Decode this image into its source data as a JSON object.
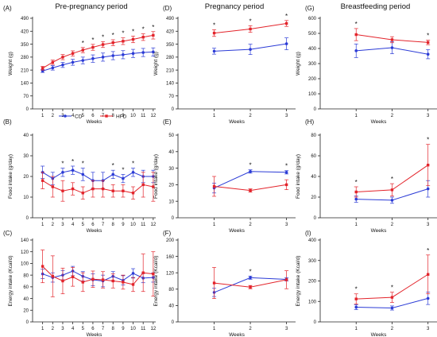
{
  "column_titles": [
    "Pre-pregnancy period",
    "Pregnancy period",
    "Breastfeeding period"
  ],
  "legend": {
    "cd_label": "CD",
    "hfd_label": "HFD"
  },
  "colors": {
    "CD": "#2b3bd6",
    "HFD": "#e3242b",
    "axis": "#222222"
  },
  "chart_data": [
    {
      "id": "A",
      "panel_label": "(A)",
      "type": "line",
      "ylabel": "Weight (g)",
      "xlabel": "Weeks",
      "x": [
        1,
        2,
        3,
        4,
        5,
        6,
        7,
        8,
        9,
        10,
        11,
        12
      ],
      "ylim": [
        0,
        490
      ],
      "yticks": [
        0,
        70,
        140,
        210,
        280,
        350,
        420,
        490
      ],
      "series": [
        {
          "name": "CD",
          "values": [
            205,
            222,
            238,
            252,
            262,
            272,
            280,
            288,
            293,
            300,
            305,
            308
          ],
          "errors": [
            8,
            12,
            14,
            16,
            18,
            20,
            22,
            22,
            22,
            22,
            22,
            22
          ]
        },
        {
          "name": "HFD",
          "values": [
            220,
            252,
            280,
            300,
            318,
            333,
            348,
            358,
            366,
            376,
            388,
            398
          ],
          "errors": [
            10,
            12,
            14,
            14,
            14,
            16,
            16,
            16,
            18,
            18,
            18,
            20
          ]
        }
      ],
      "significance": [
        "",
        "",
        "",
        "",
        "*",
        "*",
        "*",
        "*",
        "*",
        "*",
        "*",
        "*"
      ]
    },
    {
      "id": "B",
      "panel_label": "(B)",
      "type": "line",
      "ylabel": "Food intake (g/day)",
      "xlabel": "Weeks",
      "x": [
        1,
        2,
        3,
        4,
        5,
        6,
        7,
        8,
        9,
        10,
        11,
        12
      ],
      "ylim": [
        0,
        40
      ],
      "yticks": [
        0,
        10,
        20,
        30,
        40
      ],
      "series": [
        {
          "name": "CD",
          "values": [
            22,
            19,
            22,
            23,
            21,
            18,
            18,
            21,
            19,
            22,
            20,
            20
          ],
          "errors": [
            3,
            3,
            2,
            2,
            3,
            4,
            4,
            2,
            2,
            2,
            3,
            3
          ]
        },
        {
          "name": "HFD",
          "values": [
            18,
            15,
            13,
            14,
            12,
            14,
            14,
            13,
            13,
            12,
            16,
            15
          ],
          "errors": [
            4,
            5,
            5,
            3,
            3,
            4,
            4,
            3,
            3,
            3,
            6,
            7
          ]
        }
      ],
      "significance": [
        "",
        "",
        "*",
        "*",
        "*",
        "",
        "",
        "*",
        "*",
        "*",
        "",
        ""
      ]
    },
    {
      "id": "C",
      "panel_label": "(C)",
      "type": "line",
      "ylabel": "Energy intake (Kcal/d)",
      "xlabel": "Weeks",
      "x": [
        1,
        2,
        3,
        4,
        5,
        6,
        7,
        8,
        9,
        10,
        11,
        12
      ],
      "ylim": [
        0,
        140
      ],
      "yticks": [
        0,
        20,
        40,
        60,
        80,
        100,
        120,
        140
      ],
      "series": [
        {
          "name": "CD",
          "values": [
            82,
            76,
            80,
            87,
            78,
            72,
            70,
            78,
            71,
            83,
            75,
            76
          ],
          "errors": [
            8,
            8,
            8,
            8,
            8,
            10,
            10,
            8,
            8,
            8,
            8,
            8
          ]
        },
        {
          "name": "HFD",
          "values": [
            95,
            78,
            70,
            77,
            68,
            73,
            72,
            70,
            68,
            64,
            84,
            82
          ],
          "errors": [
            28,
            35,
            22,
            16,
            16,
            14,
            14,
            12,
            12,
            12,
            32,
            38
          ]
        }
      ],
      "significance": [
        "",
        "",
        "",
        "",
        "",
        "",
        "",
        "",
        "",
        "",
        "",
        ""
      ]
    },
    {
      "id": "D",
      "panel_label": "(D)",
      "type": "line",
      "ylabel": "Weight (g)",
      "xlabel": "Weeks",
      "x": [
        1,
        2,
        3
      ],
      "ylim": [
        0,
        490
      ],
      "yticks": [
        0,
        70,
        140,
        210,
        280,
        350,
        420,
        490
      ],
      "series": [
        {
          "name": "CD",
          "values": [
            312,
            322,
            352
          ],
          "errors": [
            16,
            28,
            32
          ]
        },
        {
          "name": "HFD",
          "values": [
            410,
            432,
            462
          ],
          "errors": [
            18,
            18,
            16
          ]
        }
      ],
      "significance": [
        "*",
        "*",
        "*"
      ]
    },
    {
      "id": "E",
      "panel_label": "(E)",
      "type": "line",
      "ylabel": "Food intake (g/day)",
      "xlabel": "Weeks",
      "x": [
        1,
        2,
        3
      ],
      "ylim": [
        0,
        50
      ],
      "yticks": [
        0,
        10,
        20,
        30,
        40,
        50
      ],
      "series": [
        {
          "name": "CD",
          "values": [
            18,
            28,
            27.5
          ],
          "errors": [
            3,
            1,
            1
          ]
        },
        {
          "name": "HFD",
          "values": [
            19,
            16.5,
            20
          ],
          "errors": [
            6,
            1,
            3
          ]
        }
      ],
      "significance": [
        "",
        "*",
        "*"
      ]
    },
    {
      "id": "F",
      "panel_label": "(F)",
      "type": "line",
      "ylabel": "Energy intake (Kcal/d)",
      "xlabel": "Weeks",
      "x": [
        1,
        2,
        3
      ],
      "ylim": [
        0,
        200
      ],
      "yticks": [
        0,
        40,
        80,
        120,
        160,
        200
      ],
      "series": [
        {
          "name": "CD",
          "values": [
            72,
            108,
            104
          ],
          "errors": [
            10,
            4,
            4
          ]
        },
        {
          "name": "HFD",
          "values": [
            95,
            85,
            103
          ],
          "errors": [
            38,
            4,
            22
          ]
        }
      ],
      "significance": [
        "",
        "*",
        ""
      ]
    },
    {
      "id": "G",
      "panel_label": "(G)",
      "type": "line",
      "ylabel": "Weight (g)",
      "xlabel": "Weeks",
      "x": [
        1,
        2,
        3
      ],
      "ylim": [
        0,
        600
      ],
      "yticks": [
        0,
        100,
        200,
        300,
        400,
        500,
        600
      ],
      "series": [
        {
          "name": "CD",
          "values": [
            385,
            405,
            362
          ],
          "errors": [
            45,
            40,
            30
          ]
        },
        {
          "name": "HFD",
          "values": [
            492,
            458,
            440
          ],
          "errors": [
            40,
            20,
            15
          ]
        }
      ],
      "significance": [
        "*",
        "",
        "*"
      ]
    },
    {
      "id": "H",
      "panel_label": "(H)",
      "type": "line",
      "ylabel": "Food intake (g/day)",
      "xlabel": "Weeks",
      "x": [
        1,
        2,
        3
      ],
      "ylim": [
        0,
        80
      ],
      "yticks": [
        0,
        20,
        40,
        60,
        80
      ],
      "series": [
        {
          "name": "CD",
          "values": [
            18,
            17,
            28
          ],
          "errors": [
            3,
            3,
            8
          ]
        },
        {
          "name": "HFD",
          "values": [
            25,
            27,
            51
          ],
          "errors": [
            5,
            6,
            20
          ]
        }
      ],
      "significance": [
        "*",
        "*",
        "*"
      ]
    },
    {
      "id": "I",
      "panel_label": "(I)",
      "type": "line",
      "ylabel": "Energy intake (Kcal/d)",
      "xlabel": "Weeks",
      "x": [
        1,
        2,
        3
      ],
      "ylim": [
        0,
        400
      ],
      "yticks": [
        0,
        100,
        200,
        300,
        400
      ],
      "series": [
        {
          "name": "CD",
          "values": [
            72,
            68,
            115
          ],
          "errors": [
            12,
            10,
            30
          ]
        },
        {
          "name": "HFD",
          "values": [
            112,
            120,
            232
          ],
          "errors": [
            25,
            25,
            95
          ]
        }
      ],
      "significance": [
        "*",
        "*",
        "*"
      ]
    }
  ]
}
